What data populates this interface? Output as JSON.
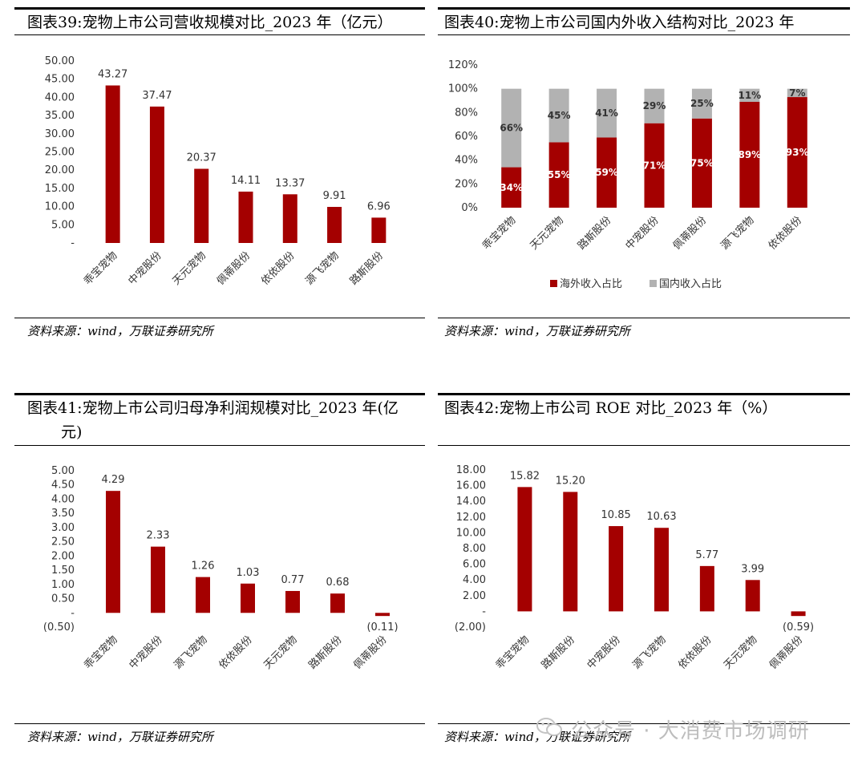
{
  "colors": {
    "bar": "#a40000",
    "grey": "#b2b2b2",
    "rule": "#000000"
  },
  "panels": [
    {
      "title": "图表39:宠物上市公司营收规模对比_2023 年（亿元）",
      "title2": "",
      "source": "资料来源：wind，万联证券研究所"
    },
    {
      "title": "图表40:宠物上市公司国内外收入结构对比_2023 年",
      "title2": "",
      "source": "资料来源：wind，万联证券研究所"
    },
    {
      "title": "图表41:宠物上市公司归母净利润规模对比_2023 年(亿",
      "title2": "元)",
      "source": "资料来源：wind，万联证券研究所"
    },
    {
      "title": "图表42:宠物上市公司 ROE 对比_2023 年（%）",
      "title2": "",
      "source": "资料来源：wind，万联证券研究所"
    }
  ],
  "watermark": "公众号 · 大消费市场调研",
  "chart_data": [
    {
      "type": "bar",
      "title": "图表39:宠物上市公司营收规模对比_2023 年（亿元）",
      "categories": [
        "乖宝宠物",
        "中宠股份",
        "天元宠物",
        "佩蒂股份",
        "依依股份",
        "源飞宠物",
        "路斯股份"
      ],
      "values": [
        43.27,
        37.47,
        20.37,
        14.11,
        13.37,
        9.91,
        6.96
      ],
      "value_labels": [
        "43.27",
        "37.47",
        "20.37",
        "14.11",
        "13.37",
        "9.91",
        "6.96"
      ],
      "ylim": [
        0,
        50
      ],
      "yticks": [
        0,
        5,
        10,
        15,
        20,
        25,
        30,
        35,
        40,
        45,
        50
      ],
      "ytick_labels": [
        "-",
        "5.00",
        "10.00",
        "15.00",
        "20.00",
        "25.00",
        "30.00",
        "35.00",
        "40.00",
        "45.00",
        "50.00"
      ]
    },
    {
      "type": "bar",
      "stacked": true,
      "title": "图表40:宠物上市公司国内外收入结构对比_2023 年",
      "categories": [
        "乖宝宠物",
        "天元宠物",
        "路斯股份",
        "中宠股份",
        "佩蒂股份",
        "源飞宠物",
        "依依股份"
      ],
      "series": [
        {
          "name": "海外收入占比",
          "values": [
            34,
            55,
            59,
            71,
            75,
            89,
            93
          ],
          "labels": [
            "34%",
            "55%",
            "59%",
            "71%",
            "75%",
            "89%",
            "93%"
          ]
        },
        {
          "name": "国内收入占比",
          "values": [
            66,
            45,
            41,
            29,
            25,
            11,
            7
          ],
          "labels": [
            "66%",
            "45%",
            "41%",
            "29%",
            "25%",
            "11%",
            "7%"
          ]
        }
      ],
      "ylim": [
        0,
        120
      ],
      "yticks": [
        0,
        20,
        40,
        60,
        80,
        100,
        120
      ],
      "ytick_labels": [
        "0%",
        "20%",
        "40%",
        "60%",
        "80%",
        "100%",
        "120%"
      ],
      "legend": "bottom"
    },
    {
      "type": "bar",
      "title": "图表41:宠物上市公司归母净利润规模对比_2023 年(亿元)",
      "categories": [
        "乖宝宠物",
        "中宠股份",
        "源飞宠物",
        "依依股份",
        "天元宠物",
        "路斯股份",
        "佩蒂股份"
      ],
      "values": [
        4.29,
        2.33,
        1.26,
        1.03,
        0.77,
        0.68,
        -0.11
      ],
      "value_labels": [
        "4.29",
        "2.33",
        "1.26",
        "1.03",
        "0.77",
        "0.68",
        "(0.11)"
      ],
      "ylim": [
        -0.5,
        5
      ],
      "yticks": [
        -0.5,
        0,
        0.5,
        1,
        1.5,
        2,
        2.5,
        3,
        3.5,
        4,
        4.5,
        5
      ],
      "ytick_labels": [
        "(0.50)",
        "-",
        "0.50",
        "1.00",
        "1.50",
        "2.00",
        "2.50",
        "3.00",
        "3.50",
        "4.00",
        "4.50",
        "5.00"
      ]
    },
    {
      "type": "bar",
      "title": "图表42:宠物上市公司 ROE 对比_2023 年（%）",
      "categories": [
        "乖宝宠物",
        "路斯股份",
        "中宠股份",
        "源飞宠物",
        "依依股份",
        "天元宠物",
        "佩蒂股份"
      ],
      "values": [
        15.82,
        15.2,
        10.85,
        10.63,
        5.77,
        3.99,
        -0.59
      ],
      "value_labels": [
        "15.82",
        "15.20",
        "10.85",
        "10.63",
        "5.77",
        "3.99",
        "(0.59)"
      ],
      "ylim": [
        -2,
        18
      ],
      "yticks": [
        -2,
        0,
        2,
        4,
        6,
        8,
        10,
        12,
        14,
        16,
        18
      ],
      "ytick_labels": [
        "(2.00)",
        "-",
        "2.00",
        "4.00",
        "6.00",
        "8.00",
        "10.00",
        "12.00",
        "14.00",
        "16.00",
        "18.00"
      ]
    }
  ]
}
